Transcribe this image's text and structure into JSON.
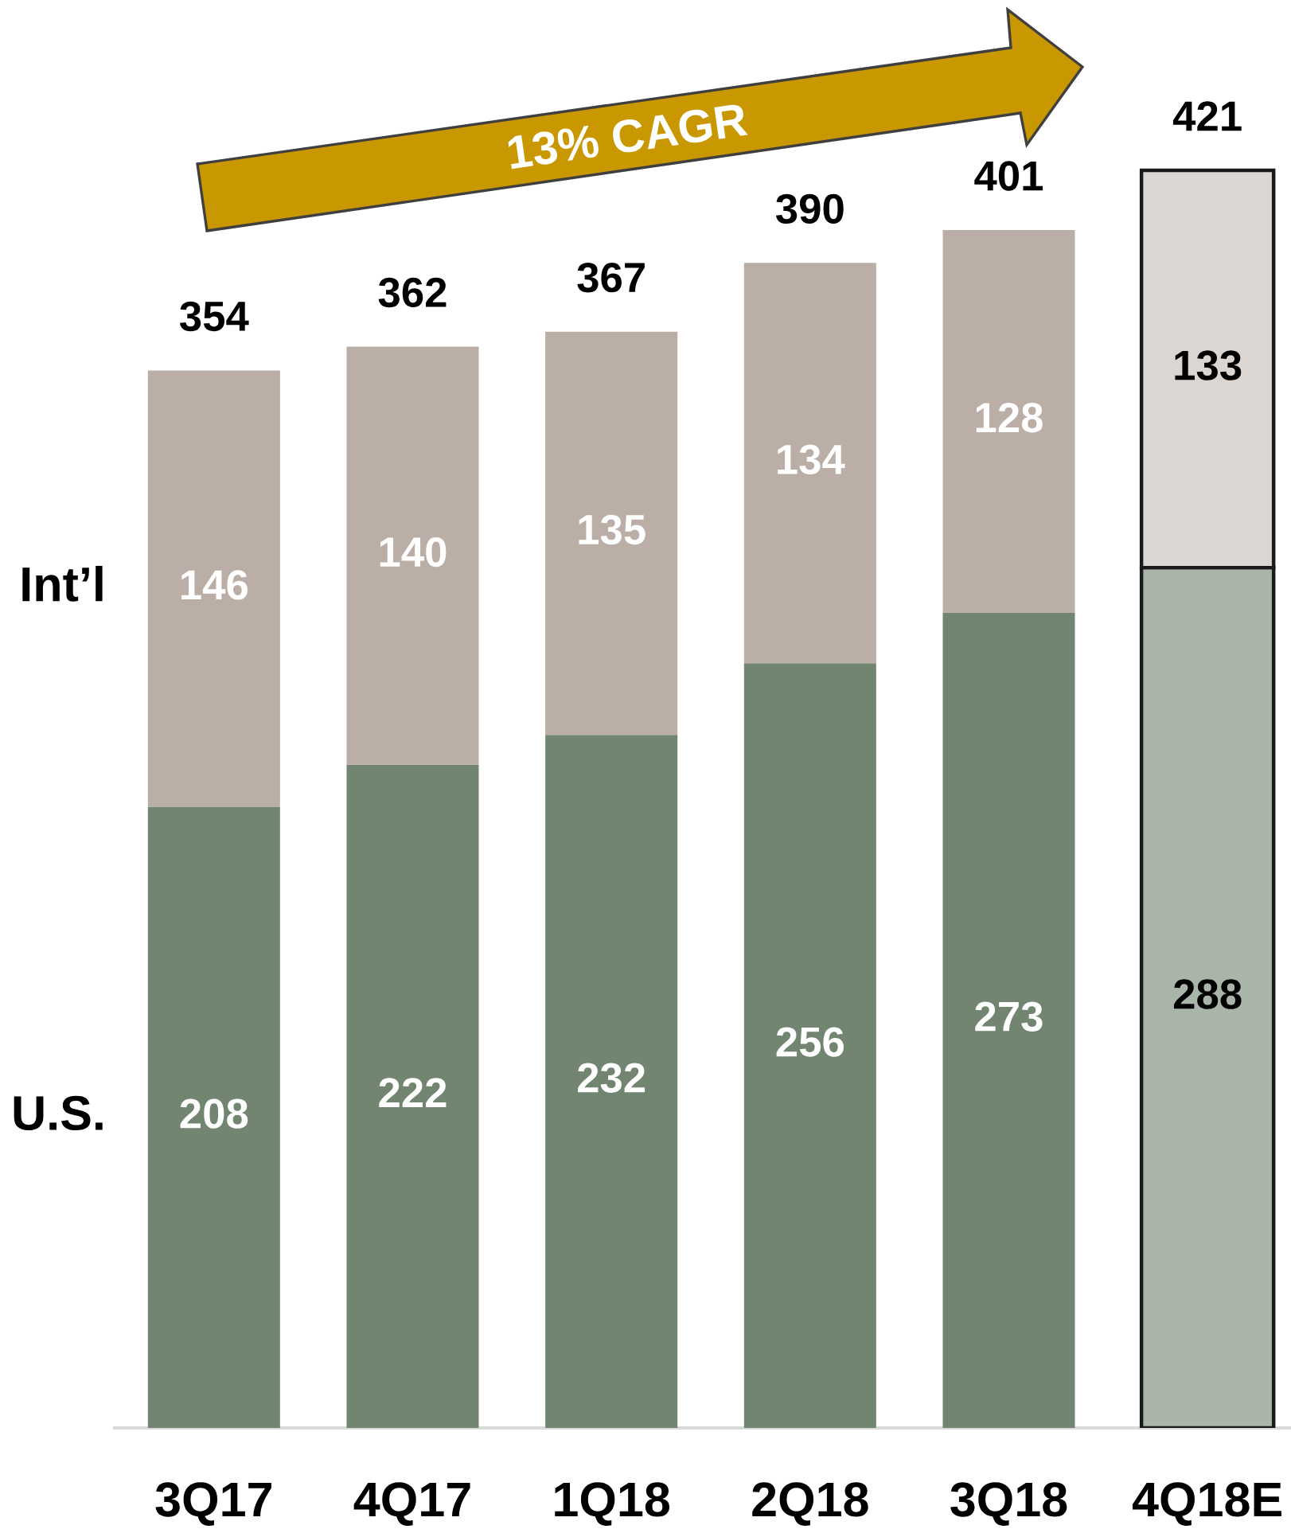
{
  "chart_data": {
    "type": "bar",
    "stacked": true,
    "categories": [
      "3Q17",
      "4Q17",
      "1Q18",
      "2Q18",
      "3Q18",
      "4Q18E"
    ],
    "series": [
      {
        "name": "U.S.",
        "color": "#718571",
        "colors": [
          "#718571",
          "#718571",
          "#718571",
          "#718571",
          "#718571",
          "#aab5a9"
        ],
        "values": [
          208,
          222,
          232,
          256,
          273,
          288
        ]
      },
      {
        "name": "Int’l",
        "color": "#baaea6",
        "colors": [
          "#baaea6",
          "#baaea6",
          "#baaea6",
          "#baaea6",
          "#baaea6",
          "#dcd6d3"
        ],
        "values": [
          146,
          140,
          135,
          134,
          128,
          133
        ]
      }
    ],
    "totals": [
      "354",
      "362",
      "367",
      "390",
      "401",
      "421"
    ],
    "data_labels": true,
    "tick_labels": "x",
    "annotations": [
      "13% CAGR"
    ]
  }
}
